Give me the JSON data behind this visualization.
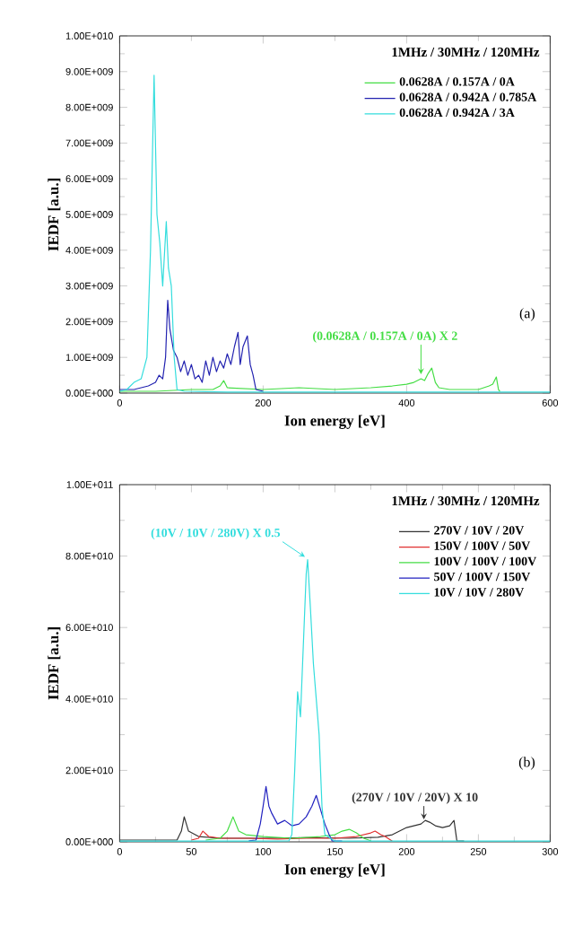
{
  "chart_data": [
    {
      "type": "line",
      "xlabel": "Ion energy [eV]",
      "ylabel": "IEDF [a.u.]",
      "legend_title": "1MHz / 30MHz / 120MHz",
      "legend": "top right",
      "xlim": [
        0,
        600
      ],
      "xticks": [
        0,
        200,
        400,
        600
      ],
      "ylim": [
        0,
        10000000000.0
      ],
      "yticks": [
        {
          "value": 0,
          "label": "0.00E+000"
        },
        {
          "value": 1000000000.0,
          "label": "1.00E+009"
        },
        {
          "value": 2000000000.0,
          "label": "2.00E+009"
        },
        {
          "value": 3000000000.0,
          "label": "3.00E+009"
        },
        {
          "value": 4000000000.0,
          "label": "4.00E+009"
        },
        {
          "value": 5000000000.0,
          "label": "5.00E+009"
        },
        {
          "value": 6000000000.0,
          "label": "6.00E+009"
        },
        {
          "value": 7000000000.0,
          "label": "7.00E+009"
        },
        {
          "value": 8000000000.0,
          "label": "8.00E+009"
        },
        {
          "value": 9000000000.0,
          "label": "9.00E+009"
        },
        {
          "value": 10000000000.0,
          "label": "1.00E+010"
        }
      ],
      "annotations": [
        {
          "text": "(0.0628A / 0.157A / 0A) X 2",
          "x": 420,
          "y": 450000000.0
        },
        "(a)"
      ],
      "series": [
        {
          "name": "0.0628A / 0.157A / 0A",
          "color": "#44dd44",
          "x": [
            0,
            50,
            100,
            130,
            140,
            145,
            150,
            200,
            250,
            300,
            350,
            380,
            400,
            410,
            420,
            425,
            430,
            435,
            440,
            445,
            460,
            500,
            515,
            520,
            525,
            528,
            530
          ],
          "values": [
            50000000.0,
            50000000.0,
            100000000.0,
            100000000.0,
            200000000.0,
            350000000.0,
            150000000.0,
            100000000.0,
            150000000.0,
            100000000.0,
            150000000.0,
            200000000.0,
            250000000.0,
            300000000.0,
            400000000.0,
            350000000.0,
            550000000.0,
            700000000.0,
            300000000.0,
            150000000.0,
            100000000.0,
            100000000.0,
            200000000.0,
            250000000.0,
            450000000.0,
            100000000.0,
            50000000.0
          ]
        },
        {
          "name": "0.0628A / 0.942A / 0.785A",
          "color": "#2222b0",
          "x": [
            0,
            20,
            40,
            50,
            55,
            60,
            64,
            67,
            70,
            75,
            80,
            85,
            90,
            95,
            100,
            105,
            110,
            115,
            120,
            125,
            130,
            135,
            140,
            145,
            150,
            155,
            160,
            165,
            168,
            172,
            178,
            182,
            186,
            190,
            200
          ],
          "values": [
            100000000.0,
            100000000.0,
            200000000.0,
            300000000.0,
            500000000.0,
            400000000.0,
            1000000000.0,
            2600000000.0,
            1800000000.0,
            1200000000.0,
            1000000000.0,
            600000000.0,
            900000000.0,
            500000000.0,
            800000000.0,
            400000000.0,
            500000000.0,
            300000000.0,
            900000000.0,
            500000000.0,
            1000000000.0,
            600000000.0,
            900000000.0,
            700000000.0,
            1100000000.0,
            800000000.0,
            1300000000.0,
            1700000000.0,
            800000000.0,
            1300000000.0,
            1600000000.0,
            800000000.0,
            500000000.0,
            100000000.0,
            50000000.0
          ]
        },
        {
          "name": "0.0628A / 0.942A / 3A",
          "color": "#33dddd",
          "x": [
            0,
            10,
            20,
            30,
            38,
            43,
            48,
            52,
            56,
            60,
            65,
            68,
            72,
            76,
            80,
            90,
            150,
            300,
            450,
            600
          ],
          "values": [
            50000000.0,
            100000000.0,
            300000000.0,
            400000000.0,
            1000000000.0,
            4000000000.0,
            8900000000.0,
            5000000000.0,
            4200000000.0,
            3000000000.0,
            4800000000.0,
            3500000000.0,
            3000000000.0,
            1000000000.0,
            100000000.0,
            50000000.0,
            30000000.0,
            30000000.0,
            30000000.0,
            30000000.0
          ]
        }
      ]
    },
    {
      "type": "line",
      "xlabel": "Ion energy [eV]",
      "ylabel": "IEDF [a.u.]",
      "legend_title": "1MHz / 30MHz / 120MHz",
      "legend": "top right",
      "xlim": [
        0,
        300
      ],
      "xticks": [
        0,
        50,
        100,
        150,
        200,
        250,
        300
      ],
      "ylim": [
        0,
        100000000000.0
      ],
      "yticks": [
        {
          "value": 0,
          "label": "0.00E+000"
        },
        {
          "value": 20000000000.0,
          "label": "2.00E+010"
        },
        {
          "value": 40000000000.0,
          "label": "4.00E+010"
        },
        {
          "value": 60000000000.0,
          "label": "6.00E+010"
        },
        {
          "value": 80000000000.0,
          "label": "8.00E+010"
        },
        {
          "value": 100000000000.0,
          "label": "1.00E+011"
        }
      ],
      "annotations": [
        {
          "text": "(10V / 10V / 280V) X 0.5",
          "x": 131,
          "y": 79000000000.0
        },
        {
          "text": "(270V / 10V / 20V) X 10",
          "x": 212,
          "y": 5500000000.0
        },
        "(b)"
      ],
      "series": [
        {
          "name": "270V / 10V / 20V",
          "color": "#333333",
          "x": [
            0,
            20,
            40,
            43,
            45,
            48,
            55,
            70,
            100,
            130,
            160,
            180,
            190,
            195,
            200,
            205,
            210,
            213,
            216,
            220,
            225,
            230,
            233,
            235,
            240
          ],
          "values": [
            500000000.0,
            500000000.0,
            500000000.0,
            3000000000.0,
            7000000000.0,
            3000000000.0,
            1500000000.0,
            1000000000.0,
            1000000000.0,
            1200000000.0,
            1000000000.0,
            1300000000.0,
            2000000000.0,
            3000000000.0,
            4000000000.0,
            4500000000.0,
            5000000000.0,
            6000000000.0,
            5500000000.0,
            4500000000.0,
            4000000000.0,
            4500000000.0,
            6000000000.0,
            300000000.0,
            200000000.0
          ]
        },
        {
          "name": "150V / 100V / 50V",
          "color": "#e03030",
          "x": [
            50,
            55,
            58,
            62,
            70,
            90,
            110,
            130,
            150,
            165,
            170,
            175,
            178,
            182,
            185,
            190
          ],
          "values": [
            500000000.0,
            1000000000.0,
            3000000000.0,
            1500000000.0,
            1000000000.0,
            1000000000.0,
            800000000.0,
            1000000000.0,
            1000000000.0,
            1500000000.0,
            2000000000.0,
            2500000000.0,
            3000000000.0,
            2000000000.0,
            1500000000.0,
            200000000.0
          ]
        },
        {
          "name": "100V / 100V / 100V",
          "color": "#44dd44",
          "x": [
            60,
            70,
            75,
            79,
            83,
            88,
            100,
            120,
            140,
            150,
            155,
            160,
            165,
            170,
            175
          ],
          "values": [
            500000000.0,
            1000000000.0,
            3000000000.0,
            7000000000.0,
            3000000000.0,
            2000000000.0,
            1500000000.0,
            1000000000.0,
            1500000000.0,
            2000000000.0,
            3000000000.0,
            3500000000.0,
            2500000000.0,
            1000000000.0,
            300000000.0
          ]
        },
        {
          "name": "50V / 100V / 150V",
          "color": "#2222c0",
          "x": [
            90,
            95,
            98,
            100,
            102,
            104,
            106,
            110,
            115,
            120,
            125,
            130,
            134,
            137,
            140,
            143,
            146,
            148,
            155
          ],
          "values": [
            300000000.0,
            500000000.0,
            5000000000.0,
            10000000000.0,
            15500000000.0,
            10000000000.0,
            8000000000.0,
            5000000000.0,
            6000000000.0,
            4500000000.0,
            5000000000.0,
            7000000000.0,
            10000000000.0,
            13000000000.0,
            9000000000.0,
            5000000000.0,
            2000000000.0,
            300000000.0,
            200000000.0
          ]
        },
        {
          "name": "10V / 10V / 280V",
          "color": "#33dddd",
          "x": [
            0,
            50,
            100,
            118,
            120,
            122,
            124,
            126,
            128,
            130,
            131,
            133,
            135,
            137,
            139,
            141,
            143,
            150,
            200,
            250,
            300
          ],
          "values": [
            200000000.0,
            200000000.0,
            200000000.0,
            300000000.0,
            2000000000.0,
            20000000000.0,
            42000000000.0,
            35000000000.0,
            55000000000.0,
            75000000000.0,
            79000000000.0,
            65000000000.0,
            50000000000.0,
            40000000000.0,
            30000000000.0,
            10000000000.0,
            2000000000.0,
            200000000.0,
            200000000.0,
            200000000.0,
            200000000.0
          ]
        }
      ]
    }
  ]
}
